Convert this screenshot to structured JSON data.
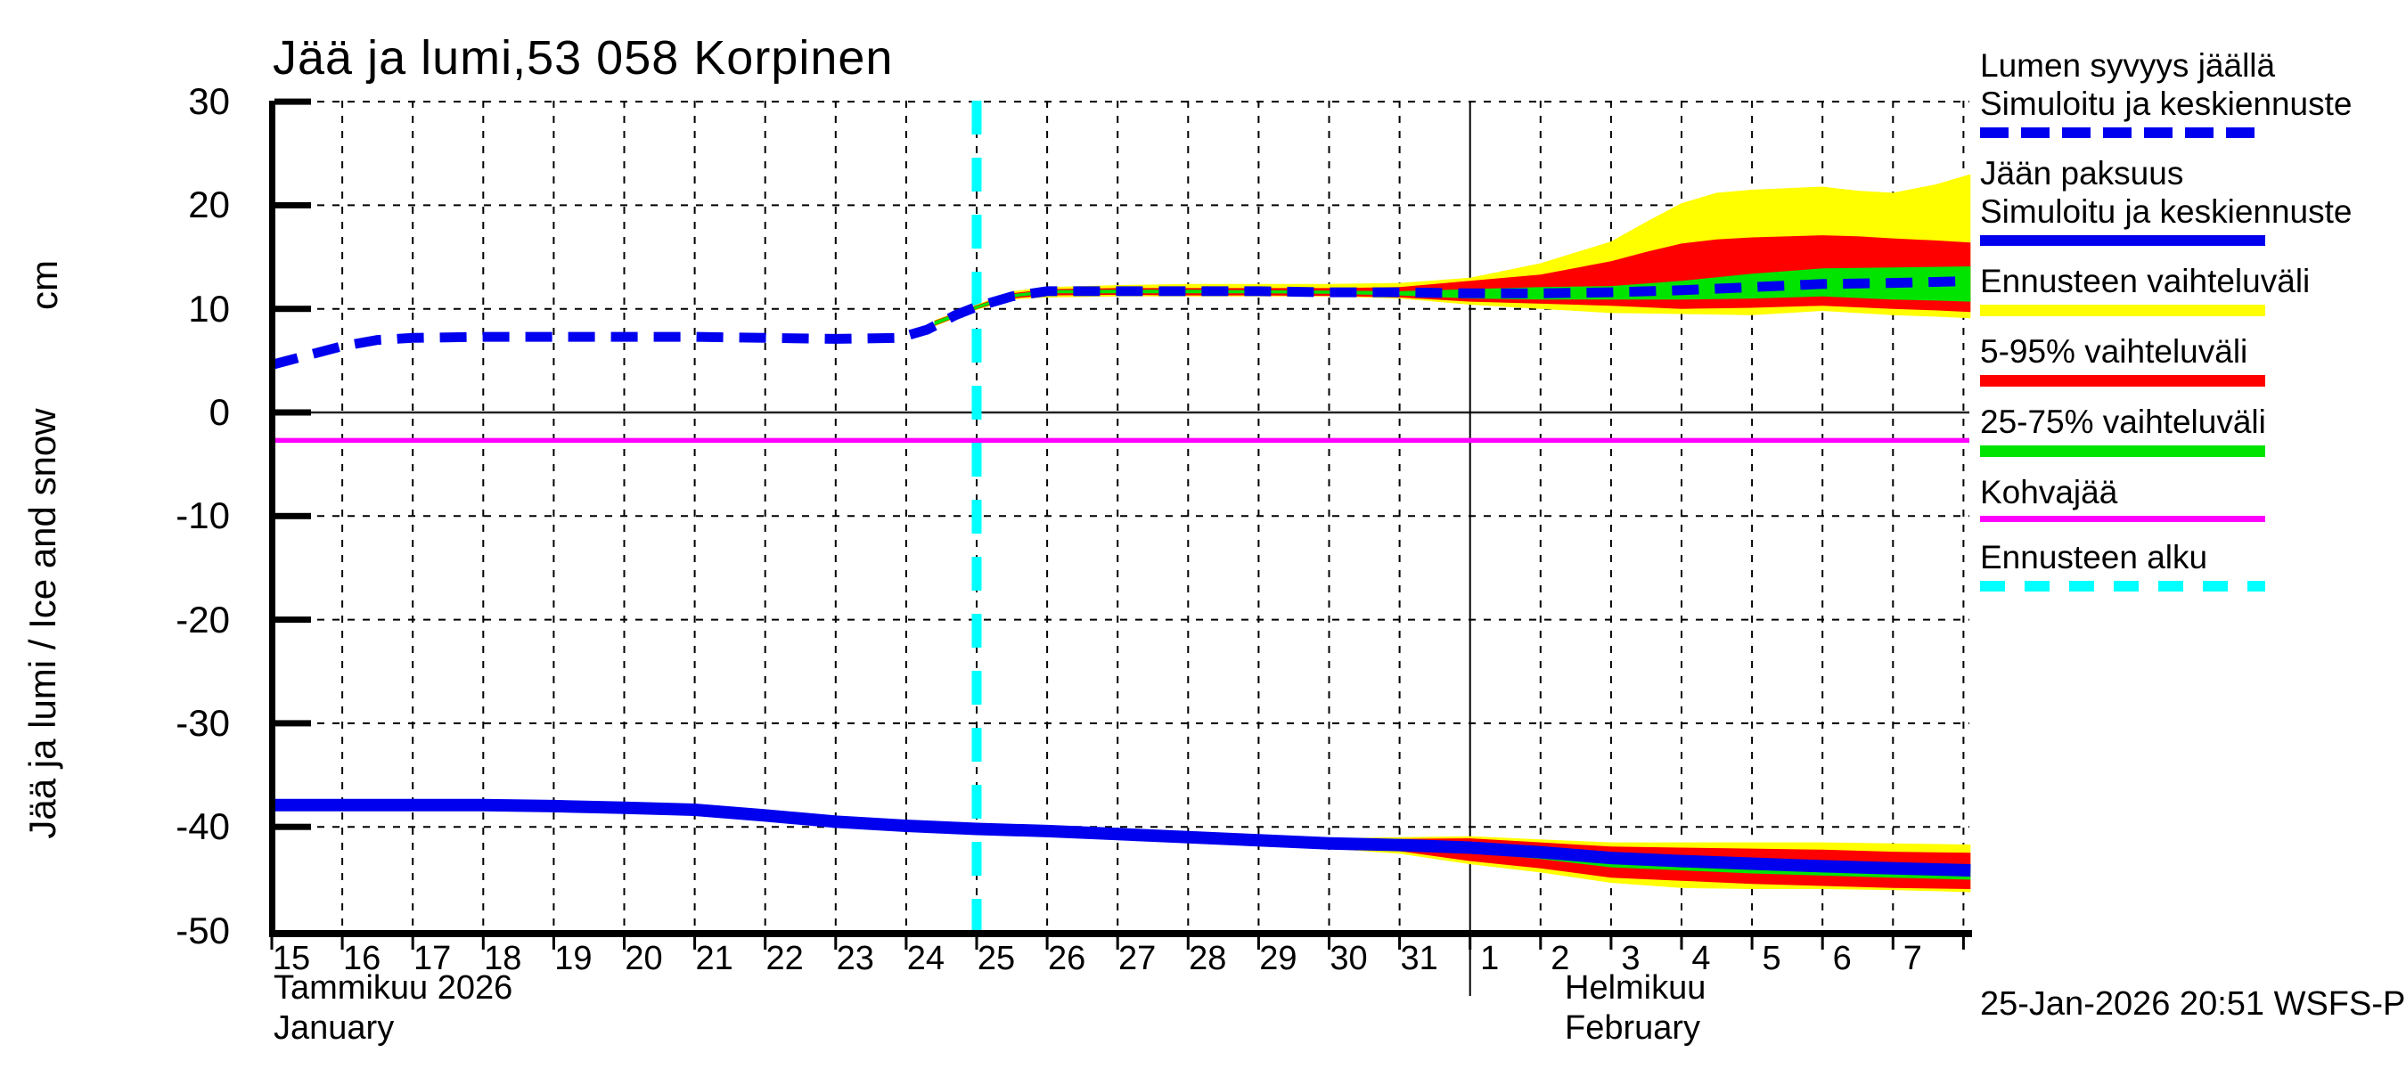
{
  "title": "Jää ja lumi,53 058 Korpinen",
  "y_axis": {
    "label_rotated": "Jää ja lumi / Ice and snow",
    "unit": "cm",
    "ticks": [
      30,
      20,
      10,
      0,
      -10,
      -20,
      -30,
      -40,
      -50
    ]
  },
  "x_axis": {
    "day_labels": [
      "15",
      "16",
      "17",
      "18",
      "19",
      "20",
      "21",
      "22",
      "23",
      "24",
      "25",
      "26",
      "27",
      "28",
      "29",
      "30",
      "31",
      "1",
      "2",
      "3",
      "4",
      "5",
      "6",
      "7"
    ],
    "month_left_fi": "Tammikuu 2026",
    "month_left_en": "January",
    "month_right_fi": "Helmikuu",
    "month_right_en": "February"
  },
  "footer": {
    "timestamp": "25-Jan-2026 20:51 WSFS-P"
  },
  "colors": {
    "blue": "#0000ee",
    "yellow": "#ffff00",
    "red": "#ff0000",
    "green": "#00e400",
    "magenta": "#ff00ff",
    "cyan": "#00ffff",
    "grid": "#000000",
    "zero_line": "#222222"
  },
  "legend": [
    {
      "lines": [
        "Lumen syvyys jäällä",
        "Simuloitu ja keskiennuste"
      ],
      "swatch": "blue-dashed"
    },
    {
      "lines": [
        "Jään paksuus",
        "Simuloitu ja keskiennuste"
      ],
      "swatch": "blue-solid"
    },
    {
      "lines": [
        "Ennusteen vaihteluväli"
      ],
      "swatch": "yellow"
    },
    {
      "lines": [
        "5-95% vaihteluväli"
      ],
      "swatch": "red"
    },
    {
      "lines": [
        "25-75% vaihteluväli"
      ],
      "swatch": "green"
    },
    {
      "lines": [
        "Kohvajää"
      ],
      "swatch": "magenta"
    },
    {
      "lines": [
        "Ennusteen alku"
      ],
      "swatch": "cyan-dashed"
    }
  ],
  "chart_data": {
    "type": "line",
    "title": "Jää ja lumi,53 058 Korpinen",
    "ylabel": "Jää ja lumi / Ice and snow (cm)",
    "ylim": [
      -50,
      30
    ],
    "x_unit": "days since 2026-01-15",
    "xlim": [
      0,
      24.1
    ],
    "grid": true,
    "legend_position": "right",
    "forecast_start_day": 10,
    "kohvajaa_level_cm": -2.7,
    "month_boundary_day": 17,
    "series": [
      {
        "name": "Lumen syvyys jäällä — Simuloitu ja keskiennuste",
        "style": "dashed",
        "x": [
          0,
          0.5,
          1,
          1.5,
          2,
          3,
          4,
          5,
          6,
          7,
          8,
          8.9,
          9.3,
          9.7,
          10,
          10.5,
          11,
          12,
          13,
          14,
          15,
          16,
          17,
          18,
          19,
          20,
          21,
          22,
          23,
          23.6,
          24.1
        ],
        "y": [
          4.6,
          5.5,
          6.4,
          7.0,
          7.2,
          7.3,
          7.3,
          7.3,
          7.3,
          7.2,
          7.1,
          7.2,
          8.0,
          9.4,
          10.2,
          11.2,
          11.7,
          11.7,
          11.7,
          11.7,
          11.6,
          11.6,
          11.5,
          11.5,
          11.6,
          11.8,
          12.1,
          12.4,
          12.5,
          12.6,
          12.7
        ]
      },
      {
        "name": "Jään paksuus — Simuloitu ja keskiennuste",
        "style": "solid",
        "x": [
          0,
          1,
          2,
          3,
          4,
          5,
          6,
          7,
          8,
          9,
          10,
          11,
          12,
          13,
          14,
          15,
          16,
          17,
          18,
          19,
          20,
          21,
          22,
          23,
          24.1
        ],
        "y": [
          -37.9,
          -37.9,
          -37.9,
          -37.9,
          -38.0,
          -38.15,
          -38.35,
          -38.9,
          -39.5,
          -39.9,
          -40.2,
          -40.4,
          -40.7,
          -41.0,
          -41.3,
          -41.6,
          -41.75,
          -42.0,
          -42.45,
          -43.0,
          -43.3,
          -43.55,
          -43.8,
          -44.0,
          -44.2
        ]
      }
    ],
    "bands": [
      {
        "name": "Ennusteen vaihteluväli (lumi)",
        "color_key": "yellow",
        "x": [
          9.4,
          10,
          10.5,
          11,
          12,
          13,
          14,
          15,
          16,
          17,
          18,
          19,
          19.5,
          20,
          20.5,
          21,
          22,
          22.5,
          23,
          23.6,
          24.1
        ],
        "top": [
          8.9,
          10.4,
          11.7,
          12.1,
          12.3,
          12.4,
          12.4,
          12.4,
          12.5,
          13.0,
          14.4,
          16.5,
          18.4,
          20.2,
          21.2,
          21.5,
          21.8,
          21.4,
          21.2,
          22.0,
          23.0
        ],
        "bottom": [
          8.3,
          9.9,
          10.9,
          11.1,
          11.2,
          11.2,
          11.2,
          11.2,
          11.0,
          10.4,
          10.0,
          9.6,
          9.55,
          9.5,
          9.45,
          9.4,
          9.8,
          9.6,
          9.4,
          9.25,
          9.1
        ]
      },
      {
        "name": "5-95% vaihteluväli (lumi)",
        "color_key": "red",
        "x": [
          9.4,
          10,
          10.5,
          11,
          12,
          13,
          14,
          15,
          16,
          17,
          18,
          19,
          19.5,
          20,
          20.5,
          21,
          22,
          22.5,
          23,
          23.6,
          24.1
        ],
        "top": [
          8.85,
          10.35,
          11.5,
          11.9,
          12.0,
          12.0,
          12.0,
          12.0,
          12.1,
          12.7,
          13.3,
          14.6,
          15.5,
          16.3,
          16.7,
          16.9,
          17.1,
          17.0,
          16.8,
          16.6,
          16.4
        ],
        "bottom": [
          8.35,
          9.95,
          11.0,
          11.3,
          11.35,
          11.3,
          11.3,
          11.25,
          11.1,
          10.7,
          10.5,
          10.3,
          10.15,
          10.0,
          10.05,
          10.1,
          10.3,
          10.15,
          10.0,
          9.85,
          9.7
        ]
      },
      {
        "name": "25-75% vaihteluväli (lumi)",
        "color_key": "green",
        "x": [
          9.4,
          10,
          10.5,
          11,
          12,
          13,
          14,
          15,
          16,
          17,
          18,
          19,
          19.5,
          20,
          20.5,
          21,
          22,
          22.5,
          23,
          23.6,
          24.1
        ],
        "top": [
          8.8,
          10.3,
          11.4,
          11.8,
          11.85,
          11.85,
          11.8,
          11.75,
          11.7,
          11.9,
          12.1,
          12.2,
          12.45,
          12.7,
          13.05,
          13.4,
          13.9,
          13.95,
          14.0,
          14.05,
          14.1
        ],
        "bottom": [
          8.4,
          10.0,
          11.1,
          11.5,
          11.5,
          11.5,
          11.5,
          11.45,
          11.3,
          11.0,
          10.9,
          10.9,
          10.9,
          10.9,
          10.95,
          11.0,
          11.2,
          11.05,
          10.9,
          10.8,
          10.7
        ]
      },
      {
        "name": "Ennusteen vaihteluväli (jää)",
        "color_key": "yellow",
        "x": [
          9.4,
          10,
          11,
          12,
          13,
          14,
          15,
          16,
          17,
          18,
          19,
          20,
          21,
          22,
          23,
          24.1
        ],
        "top": [
          -39.6,
          -40.0,
          -40.2,
          -40.5,
          -40.8,
          -41.0,
          -41.1,
          -41.0,
          -40.9,
          -41.2,
          -41.5,
          -41.5,
          -41.5,
          -41.5,
          -41.6,
          -41.7
        ],
        "bottom": [
          -40.2,
          -40.5,
          -40.7,
          -40.95,
          -41.2,
          -41.6,
          -42.1,
          -42.6,
          -43.6,
          -44.4,
          -45.4,
          -45.9,
          -46.0,
          -46.0,
          -46.1,
          -46.3
        ]
      },
      {
        "name": "5-95% vaihteluväli (jää)",
        "color_key": "red",
        "x": [
          9.4,
          10,
          11,
          12,
          13,
          14,
          15,
          16,
          17,
          18,
          19,
          20,
          21,
          22,
          23,
          24.1
        ],
        "top": [
          -39.65,
          -40.05,
          -40.25,
          -40.55,
          -40.85,
          -41.1,
          -41.25,
          -41.15,
          -41.1,
          -41.5,
          -41.9,
          -42.0,
          -42.1,
          -42.2,
          -42.4,
          -42.5
        ],
        "bottom": [
          -40.15,
          -40.45,
          -40.65,
          -40.9,
          -41.15,
          -41.5,
          -41.95,
          -42.35,
          -43.3,
          -44.0,
          -44.9,
          -45.2,
          -45.5,
          -45.7,
          -45.9,
          -46.0
        ]
      },
      {
        "name": "25-75% vaihteluväli (jää)",
        "color_key": "green",
        "x": [
          9.4,
          10,
          11,
          12,
          13,
          14,
          15,
          16,
          17,
          18,
          19,
          20,
          21,
          22,
          23,
          24.1
        ],
        "top": [
          -39.7,
          -40.1,
          -40.3,
          -40.6,
          -40.9,
          -41.2,
          -41.5,
          -41.6,
          -41.8,
          -42.2,
          -42.7,
          -42.9,
          -43.1,
          -43.3,
          -43.5,
          -43.6
        ],
        "bottom": [
          -40.1,
          -40.4,
          -40.6,
          -40.85,
          -41.1,
          -41.4,
          -41.8,
          -41.9,
          -42.5,
          -43.1,
          -43.9,
          -44.2,
          -44.5,
          -44.7,
          -44.9,
          -45.1
        ]
      }
    ]
  }
}
